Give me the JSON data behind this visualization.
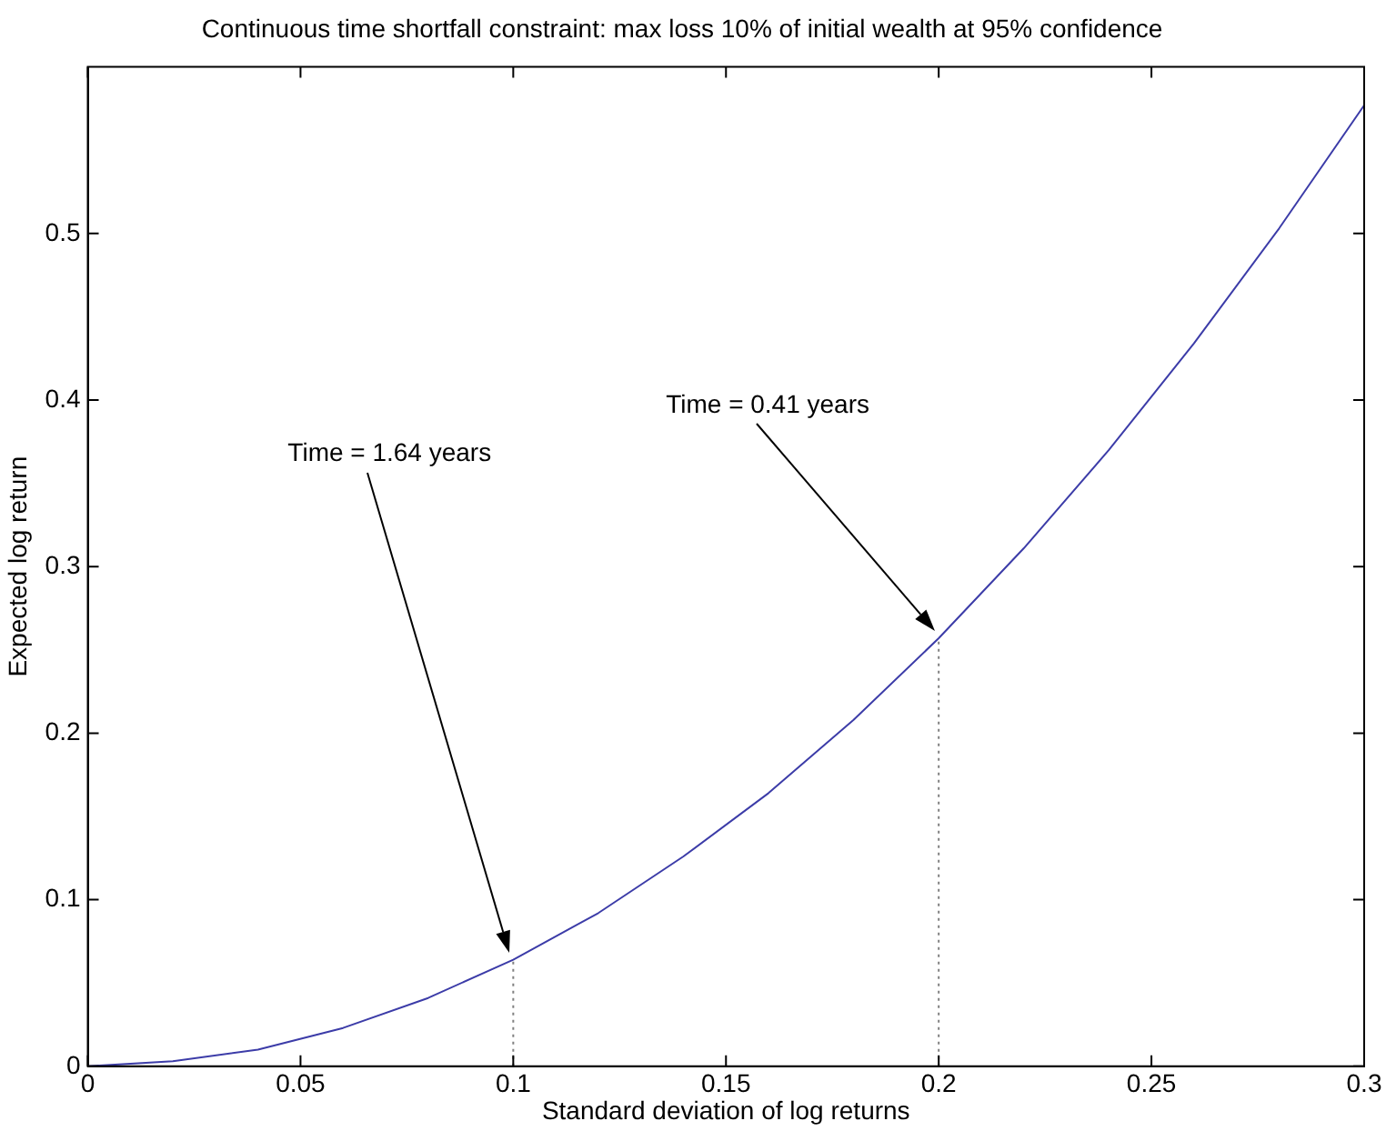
{
  "chart_data": {
    "type": "line",
    "title": "Continuous time shortfall constraint: max loss 10% of initial wealth at 95% confidence",
    "xlabel": "Standard deviation of log returns",
    "ylabel": "Expected log return",
    "series": [
      {
        "color": "#3c3ca8",
        "x": [
          0,
          0.02,
          0.04,
          0.06,
          0.08,
          0.1,
          0.12,
          0.14,
          0.16,
          0.18,
          0.2,
          0.22,
          0.24,
          0.26,
          0.28,
          0.3
        ],
        "values": [
          0,
          0.003,
          0.01,
          0.023,
          0.041,
          0.064,
          0.092,
          0.126,
          0.164,
          0.208,
          0.257,
          0.311,
          0.37,
          0.434,
          0.503,
          0.577
        ]
      },
      {
        "color": "#808080",
        "line_style": "dotted",
        "x": [
          0.1,
          0.1
        ],
        "values": [
          0,
          0.064
        ]
      },
      {
        "color": "#808080",
        "line_style": "dotted",
        "x": [
          0.2,
          0.2
        ],
        "values": [
          0,
          0.257
        ]
      }
    ],
    "annotations": [
      "Time = 1.64 years",
      "Time = 0.41 years"
    ],
    "xlim": [
      0,
      0.3
    ],
    "xticks": [
      0,
      0.05,
      0.1,
      0.15,
      0.2,
      0.25,
      0.3
    ],
    "ylim": [
      0,
      0.6
    ],
    "yticks": [
      0,
      0.1,
      0.2,
      0.3,
      0.4,
      0.5
    ],
    "grid": false,
    "legend": false,
    "marker": "none",
    "line_style": "solid"
  }
}
